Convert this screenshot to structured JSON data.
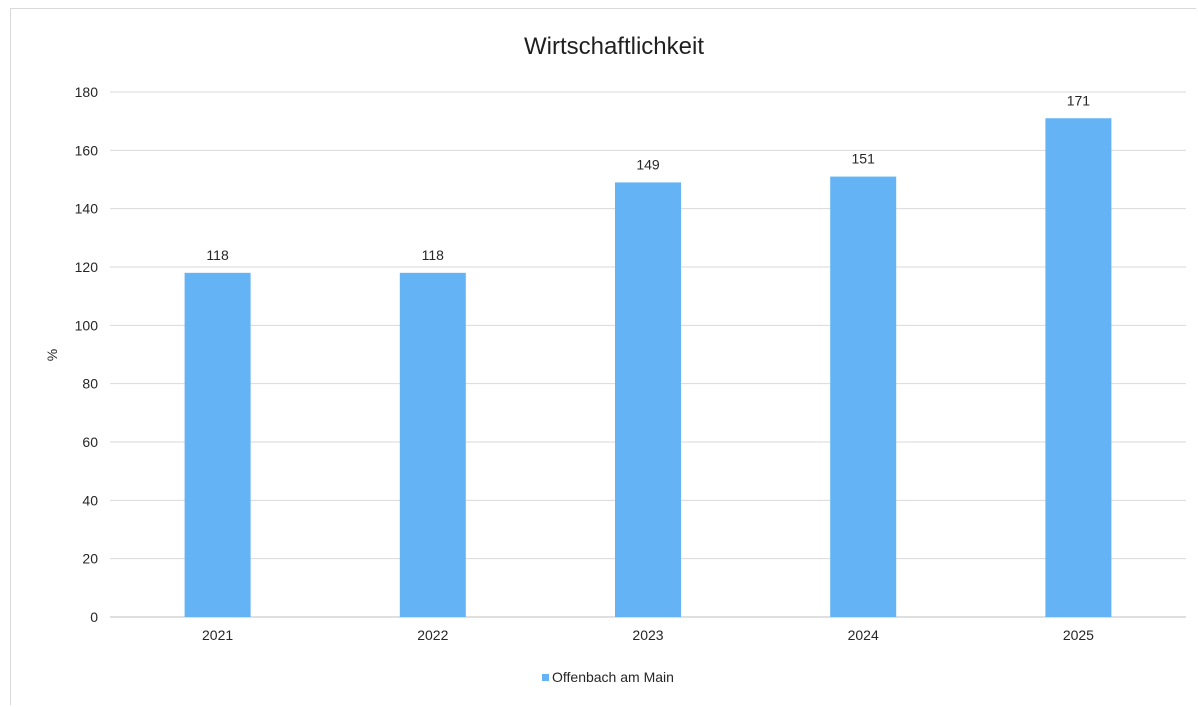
{
  "chart_data": {
    "type": "bar",
    "title": "Wirtschaftlichkeit",
    "xlabel": "",
    "ylabel": "%",
    "ylim": [
      0,
      180
    ],
    "yticks": [
      0,
      20,
      40,
      60,
      80,
      100,
      120,
      140,
      160,
      180
    ],
    "categories": [
      "2021",
      "2022",
      "2023",
      "2024",
      "2025"
    ],
    "series": [
      {
        "name": "Offenbach am Main",
        "values": [
          118,
          118,
          149,
          151,
          171
        ],
        "color": "#63b3f5"
      }
    ],
    "grid": true,
    "legend": "bottom"
  }
}
